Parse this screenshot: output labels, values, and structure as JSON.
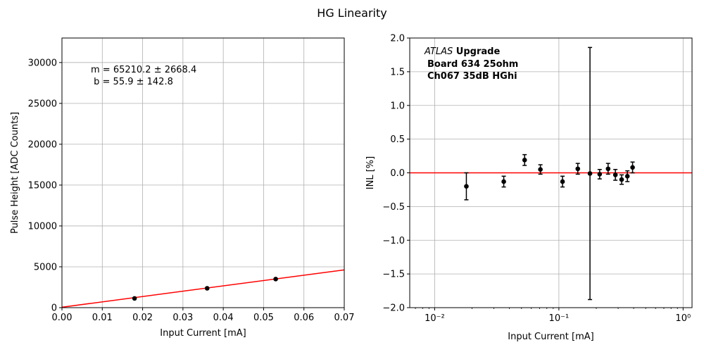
{
  "figure": {
    "title": "HG Linearity"
  },
  "chart_data": [
    {
      "type": "scatter",
      "panel": "left",
      "xlabel": "Input Current [mA]",
      "ylabel": "Pulse Height [ADC Counts]",
      "xlim": [
        0.0,
        0.07
      ],
      "ylim": [
        0,
        33000
      ],
      "xticks": [
        0.0,
        0.01,
        0.02,
        0.03,
        0.04,
        0.05,
        0.06,
        0.07
      ],
      "xtick_labels": [
        "0.00",
        "0.01",
        "0.02",
        "0.03",
        "0.04",
        "0.05",
        "0.06",
        "0.07"
      ],
      "yticks": [
        0,
        5000,
        10000,
        15000,
        20000,
        25000,
        30000
      ],
      "ytick_labels": [
        "0",
        "5000",
        "10000",
        "15000",
        "20000",
        "25000",
        "30000"
      ],
      "grid": true,
      "points": [
        {
          "x": 0.018,
          "y": 1130
        },
        {
          "x": 0.036,
          "y": 2370
        },
        {
          "x": 0.053,
          "y": 3500
        }
      ],
      "fit": {
        "slope": 65210.2,
        "intercept": 55.9,
        "color": "#ff0000"
      },
      "annotation": [
        "m = 65210.2 ± 2668.4",
        " b = 55.9 ± 142.8"
      ],
      "marker_color": "#000000"
    },
    {
      "type": "scatter",
      "panel": "right",
      "xscale": "log",
      "xlabel": "Input Current [mA]",
      "ylabel": "INL [%]",
      "xlim": [
        0.0063,
        1.18
      ],
      "ylim": [
        -2.0,
        2.0
      ],
      "xticks": [
        0.01,
        0.1,
        1
      ],
      "xtick_labels": [
        "10⁻²",
        "10⁻¹",
        "10⁰"
      ],
      "yticks": [
        -2.0,
        -1.5,
        -1.0,
        -0.5,
        0.0,
        0.5,
        1.0,
        1.5,
        2.0
      ],
      "ytick_labels": [
        "−2.0",
        "−1.5",
        "−1.0",
        "−0.5",
        "0.0",
        "0.5",
        "1.0",
        "1.5",
        "2.0"
      ],
      "grid": true,
      "points": [
        {
          "x": 0.018,
          "y": -0.2,
          "err": 0.2
        },
        {
          "x": 0.036,
          "y": -0.13,
          "err": 0.08
        },
        {
          "x": 0.053,
          "y": 0.19,
          "err": 0.08
        },
        {
          "x": 0.071,
          "y": 0.05,
          "err": 0.07
        },
        {
          "x": 0.107,
          "y": -0.13,
          "err": 0.08
        },
        {
          "x": 0.142,
          "y": 0.06,
          "err": 0.08
        },
        {
          "x": 0.178,
          "y": -0.01,
          "err": 1.87
        },
        {
          "x": 0.213,
          "y": -0.02,
          "err": 0.07
        },
        {
          "x": 0.249,
          "y": 0.06,
          "err": 0.08
        },
        {
          "x": 0.285,
          "y": -0.03,
          "err": 0.08
        },
        {
          "x": 0.32,
          "y": -0.1,
          "err": 0.07
        },
        {
          "x": 0.356,
          "y": -0.05,
          "err": 0.08
        },
        {
          "x": 0.392,
          "y": 0.08,
          "err": 0.08
        }
      ],
      "reference_line": {
        "y": 0.0,
        "color": "#ff0000"
      },
      "annotation": {
        "experiment_italic": "ATLAS",
        "experiment_bold": " Upgrade",
        "line2": "Board 634 25ohm",
        "line3": "Ch067 35dB HGhi"
      },
      "marker_color": "#000000"
    }
  ]
}
